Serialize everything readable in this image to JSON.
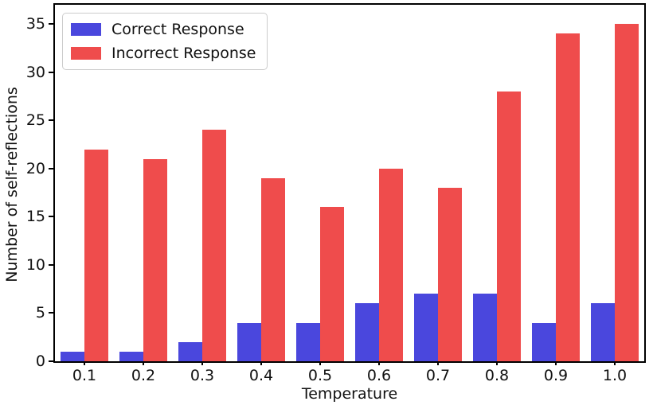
{
  "chart_data": {
    "type": "bar",
    "categories": [
      "0.1",
      "0.2",
      "0.3",
      "0.4",
      "0.5",
      "0.6",
      "0.7",
      "0.8",
      "0.9",
      "1.0"
    ],
    "series": [
      {
        "name": "Correct Response",
        "color": "#4a47dd",
        "values": [
          1,
          1,
          2,
          4,
          4,
          6,
          7,
          7,
          4,
          6
        ]
      },
      {
        "name": "Incorrect Response",
        "color": "#ef4c4c",
        "values": [
          22,
          21,
          24,
          19,
          16,
          20,
          18,
          28,
          34,
          35
        ]
      }
    ],
    "title": "",
    "xlabel": "Temperature",
    "ylabel": "Number of self-reflections",
    "yticks": [
      0,
      5,
      10,
      15,
      20,
      25,
      30,
      35
    ],
    "ylim": [
      0,
      37
    ],
    "grid": false,
    "legend_position": "upper left",
    "bar_width_fraction": 0.4
  }
}
